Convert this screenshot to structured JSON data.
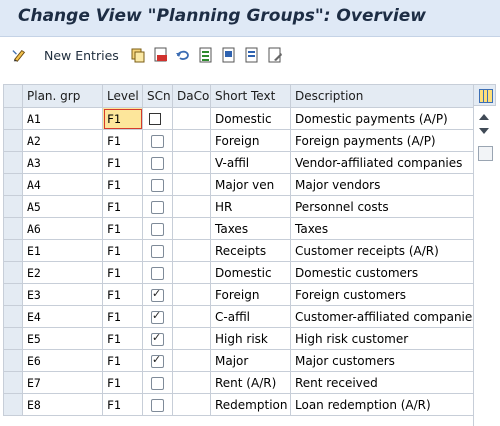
{
  "window": {
    "title": "Change View \"Planning Groups\": Overview"
  },
  "toolbar": {
    "new_entries_label": "New Entries",
    "icons": [
      "edit-pencil-icon",
      "copy-icon",
      "delete-icon",
      "undo-icon",
      "select-all-icon",
      "select-block-icon",
      "deselect-all-icon",
      "print-icon"
    ]
  },
  "table": {
    "headers": {
      "plan_grp": "Plan. grp",
      "level": "Level",
      "scn": "SCn",
      "daco": "DaCo",
      "short_text": "Short Text",
      "description": "Description"
    },
    "rows": [
      {
        "plan_grp": "A1",
        "level": "F1",
        "scn": false,
        "daco": "",
        "short_text": "Domestic",
        "description": "Domestic payments (A/P)"
      },
      {
        "plan_grp": "A2",
        "level": "F1",
        "scn": false,
        "daco": "",
        "short_text": "Foreign",
        "description": "Foreign payments (A/P)"
      },
      {
        "plan_grp": "A3",
        "level": "F1",
        "scn": false,
        "daco": "",
        "short_text": "V-affil",
        "description": "Vendor-affiliated companies"
      },
      {
        "plan_grp": "A4",
        "level": "F1",
        "scn": false,
        "daco": "",
        "short_text": "Major ven",
        "description": "Major vendors"
      },
      {
        "plan_grp": "A5",
        "level": "F1",
        "scn": false,
        "daco": "",
        "short_text": "HR",
        "description": "Personnel costs"
      },
      {
        "plan_grp": "A6",
        "level": "F1",
        "scn": false,
        "daco": "",
        "short_text": "Taxes",
        "description": "Taxes"
      },
      {
        "plan_grp": "E1",
        "level": "F1",
        "scn": false,
        "daco": "",
        "short_text": "Receipts",
        "description": "Customer receipts (A/R)"
      },
      {
        "plan_grp": "E2",
        "level": "F1",
        "scn": false,
        "daco": "",
        "short_text": "Domestic",
        "description": "Domestic customers"
      },
      {
        "plan_grp": "E3",
        "level": "F1",
        "scn": true,
        "daco": "",
        "short_text": "Foreign",
        "description": "Foreign customers"
      },
      {
        "plan_grp": "E4",
        "level": "F1",
        "scn": true,
        "daco": "",
        "short_text": "C-affil",
        "description": "Customer-affiliated companies"
      },
      {
        "plan_grp": "E5",
        "level": "F1",
        "scn": true,
        "daco": "",
        "short_text": "High risk",
        "description": "High risk customer"
      },
      {
        "plan_grp": "E6",
        "level": "F1",
        "scn": true,
        "daco": "",
        "short_text": "Major",
        "description": "Major customers"
      },
      {
        "plan_grp": "E7",
        "level": "F1",
        "scn": false,
        "daco": "",
        "short_text": "Rent (A/R)",
        "description": "Rent received"
      },
      {
        "plan_grp": "E8",
        "level": "F1",
        "scn": false,
        "daco": "",
        "short_text": "Redemption",
        "description": "Loan redemption (A/R)"
      }
    ]
  },
  "colors": {
    "title_bg": "#dfe9f6",
    "header_bg": "#e4ebf3",
    "focus_cell": "#fde69b",
    "focus_border": "#d53b2b"
  }
}
